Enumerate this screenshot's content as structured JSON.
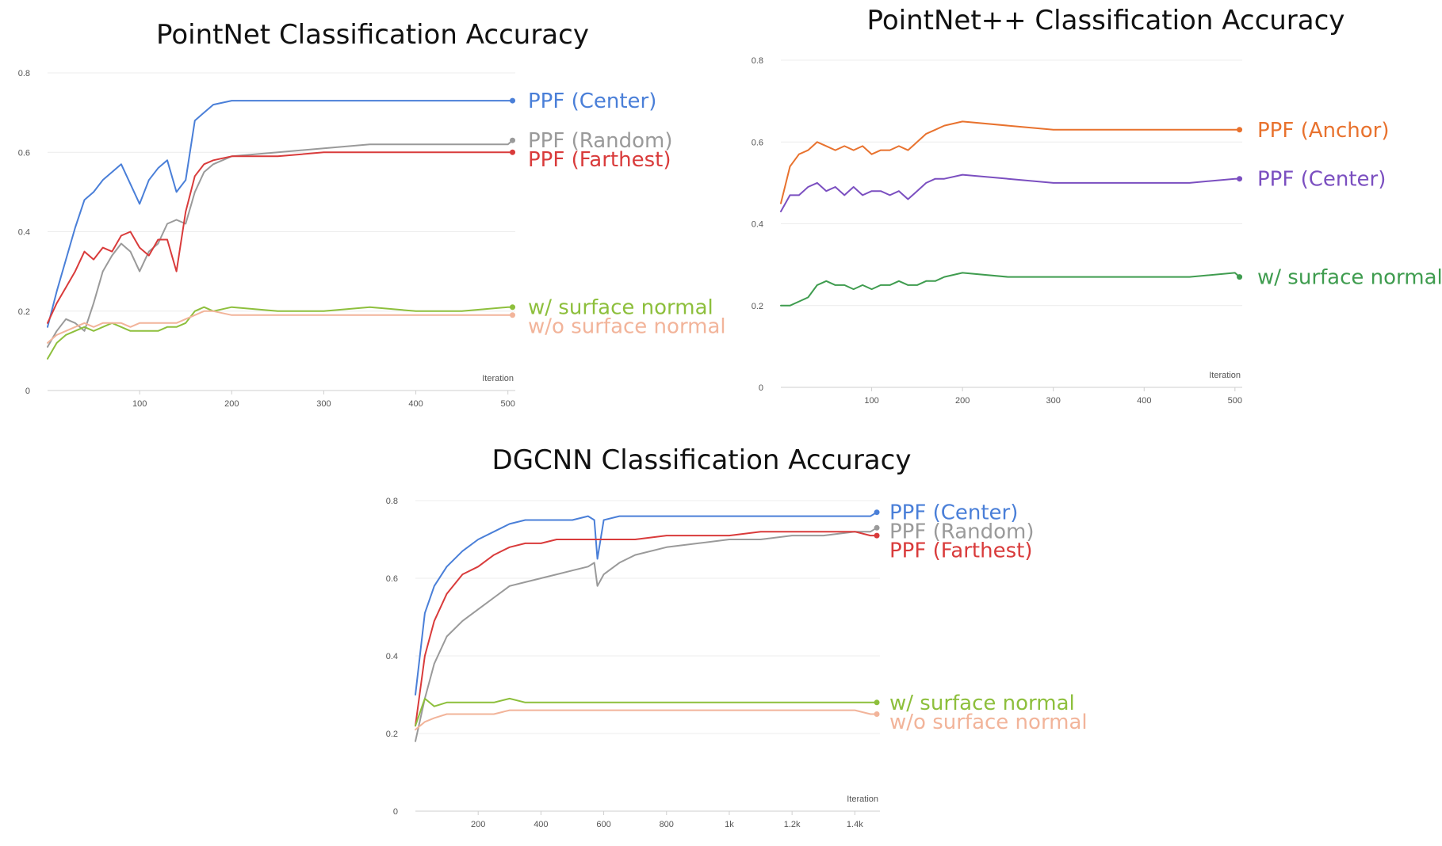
{
  "chart_data": [
    {
      "type": "line",
      "title": "PointNet Classification Accuracy",
      "xlabel": "Iteration",
      "ylabel": "",
      "xlim": [
        0,
        508
      ],
      "ylim": [
        0,
        0.8
      ],
      "xticks": [
        "100",
        "200",
        "300",
        "400",
        "500"
      ],
      "xtick_values": [
        100,
        200,
        300,
        400,
        500
      ],
      "yticks": [
        "0",
        "0.2",
        "0.4",
        "0.6",
        "0.8"
      ],
      "ytick_values": [
        0,
        0.2,
        0.4,
        0.6,
        0.8
      ],
      "grid": true,
      "series": [
        {
          "name": "PPF (Center)",
          "color": "#4a7fd8",
          "x": [
            0,
            10,
            20,
            30,
            40,
            50,
            60,
            70,
            80,
            90,
            100,
            110,
            120,
            130,
            140,
            150,
            160,
            170,
            180,
            200,
            250,
            300,
            350,
            400,
            450,
            500,
            505
          ],
          "y": [
            0.16,
            0.25,
            0.33,
            0.41,
            0.48,
            0.5,
            0.53,
            0.55,
            0.57,
            0.52,
            0.47,
            0.53,
            0.56,
            0.58,
            0.5,
            0.53,
            0.68,
            0.7,
            0.72,
            0.73,
            0.73,
            0.73,
            0.73,
            0.73,
            0.73,
            0.73,
            0.73
          ]
        },
        {
          "name": "PPF (Random)",
          "color": "#9a9a9a",
          "x": [
            0,
            10,
            20,
            30,
            40,
            50,
            60,
            70,
            80,
            90,
            100,
            110,
            120,
            130,
            140,
            150,
            160,
            170,
            180,
            200,
            250,
            300,
            350,
            400,
            450,
            500,
            505
          ],
          "y": [
            0.11,
            0.15,
            0.18,
            0.17,
            0.15,
            0.22,
            0.3,
            0.34,
            0.37,
            0.35,
            0.3,
            0.35,
            0.37,
            0.42,
            0.43,
            0.42,
            0.5,
            0.55,
            0.57,
            0.59,
            0.6,
            0.61,
            0.62,
            0.62,
            0.62,
            0.62,
            0.63
          ]
        },
        {
          "name": "PPF (Farthest)",
          "color": "#d93b3b",
          "x": [
            0,
            10,
            20,
            30,
            40,
            50,
            60,
            70,
            80,
            90,
            100,
            110,
            120,
            130,
            140,
            150,
            160,
            170,
            180,
            200,
            250,
            300,
            350,
            400,
            450,
            500,
            505
          ],
          "y": [
            0.17,
            0.22,
            0.26,
            0.3,
            0.35,
            0.33,
            0.36,
            0.35,
            0.39,
            0.4,
            0.36,
            0.34,
            0.38,
            0.38,
            0.3,
            0.45,
            0.54,
            0.57,
            0.58,
            0.59,
            0.59,
            0.6,
            0.6,
            0.6,
            0.6,
            0.6,
            0.6
          ]
        },
        {
          "name": "w/ surface normal",
          "color": "#8dbf3c",
          "x": [
            0,
            10,
            20,
            30,
            40,
            50,
            60,
            70,
            80,
            90,
            100,
            110,
            120,
            130,
            140,
            150,
            160,
            170,
            180,
            200,
            250,
            300,
            350,
            400,
            450,
            500,
            505
          ],
          "y": [
            0.08,
            0.12,
            0.14,
            0.15,
            0.16,
            0.15,
            0.16,
            0.17,
            0.16,
            0.15,
            0.15,
            0.15,
            0.15,
            0.16,
            0.16,
            0.17,
            0.2,
            0.21,
            0.2,
            0.21,
            0.2,
            0.2,
            0.21,
            0.2,
            0.2,
            0.21,
            0.21
          ]
        },
        {
          "name": "w/o surface normal",
          "color": "#f2b49a",
          "x": [
            0,
            10,
            20,
            30,
            40,
            50,
            60,
            70,
            80,
            90,
            100,
            110,
            120,
            130,
            140,
            150,
            160,
            170,
            180,
            200,
            250,
            300,
            350,
            400,
            450,
            500,
            505
          ],
          "y": [
            0.12,
            0.14,
            0.15,
            0.16,
            0.17,
            0.16,
            0.17,
            0.17,
            0.17,
            0.16,
            0.17,
            0.17,
            0.17,
            0.17,
            0.17,
            0.18,
            0.19,
            0.2,
            0.2,
            0.19,
            0.19,
            0.19,
            0.19,
            0.19,
            0.19,
            0.19,
            0.19
          ]
        }
      ]
    },
    {
      "type": "line",
      "title": "PointNet++ Classification Accuracy",
      "xlabel": "Iteration",
      "ylabel": "",
      "xlim": [
        0,
        508
      ],
      "ylim": [
        0,
        0.8
      ],
      "xticks": [
        "100",
        "200",
        "300",
        "400",
        "500"
      ],
      "xtick_values": [
        100,
        200,
        300,
        400,
        500
      ],
      "yticks": [
        "0",
        "0.2",
        "0.4",
        "0.6",
        "0.8"
      ],
      "ytick_values": [
        0,
        0.2,
        0.4,
        0.6,
        0.8
      ],
      "grid": true,
      "series": [
        {
          "name": "PPF (Anchor)",
          "color": "#e8722e",
          "x": [
            0,
            10,
            20,
            30,
            40,
            50,
            60,
            70,
            80,
            90,
            100,
            110,
            120,
            130,
            140,
            150,
            160,
            170,
            180,
            200,
            250,
            300,
            350,
            400,
            450,
            500,
            505
          ],
          "y": [
            0.45,
            0.54,
            0.57,
            0.58,
            0.6,
            0.59,
            0.58,
            0.59,
            0.58,
            0.59,
            0.57,
            0.58,
            0.58,
            0.59,
            0.58,
            0.6,
            0.62,
            0.63,
            0.64,
            0.65,
            0.64,
            0.63,
            0.63,
            0.63,
            0.63,
            0.63,
            0.63
          ]
        },
        {
          "name": "PPF (Center)",
          "color": "#7b4fc0",
          "x": [
            0,
            10,
            20,
            30,
            40,
            50,
            60,
            70,
            80,
            90,
            100,
            110,
            120,
            130,
            140,
            150,
            160,
            170,
            180,
            200,
            250,
            300,
            350,
            400,
            450,
            500,
            505
          ],
          "y": [
            0.43,
            0.47,
            0.47,
            0.49,
            0.5,
            0.48,
            0.49,
            0.47,
            0.49,
            0.47,
            0.48,
            0.48,
            0.47,
            0.48,
            0.46,
            0.48,
            0.5,
            0.51,
            0.51,
            0.52,
            0.51,
            0.5,
            0.5,
            0.5,
            0.5,
            0.51,
            0.51
          ]
        },
        {
          "name": "w/ surface normal",
          "color": "#3f9c4f",
          "x": [
            0,
            10,
            20,
            30,
            40,
            50,
            60,
            70,
            80,
            90,
            100,
            110,
            120,
            130,
            140,
            150,
            160,
            170,
            180,
            200,
            250,
            300,
            350,
            400,
            450,
            500,
            505
          ],
          "y": [
            0.2,
            0.2,
            0.21,
            0.22,
            0.25,
            0.26,
            0.25,
            0.25,
            0.24,
            0.25,
            0.24,
            0.25,
            0.25,
            0.26,
            0.25,
            0.25,
            0.26,
            0.26,
            0.27,
            0.28,
            0.27,
            0.27,
            0.27,
            0.27,
            0.27,
            0.28,
            0.27
          ]
        }
      ]
    },
    {
      "type": "line",
      "title": "DGCNN Classification Accuracy",
      "xlabel": "Iteration",
      "ylabel": "",
      "xlim": [
        0,
        1480
      ],
      "ylim": [
        0,
        0.8
      ],
      "xticks": [
        "200",
        "400",
        "600",
        "800",
        "1k",
        "1.2k",
        "1.4k"
      ],
      "xtick_values": [
        200,
        400,
        600,
        800,
        1000,
        1200,
        1400
      ],
      "yticks": [
        "0",
        "0.2",
        "0.4",
        "0.6",
        "0.8"
      ],
      "ytick_values": [
        0,
        0.2,
        0.4,
        0.6,
        0.8
      ],
      "grid": true,
      "series": [
        {
          "name": "PPF (Center)",
          "color": "#4a7fd8",
          "x": [
            0,
            30,
            60,
            100,
            150,
            200,
            250,
            300,
            350,
            400,
            450,
            500,
            550,
            570,
            580,
            600,
            650,
            700,
            800,
            900,
            1000,
            1100,
            1200,
            1300,
            1400,
            1450,
            1470
          ],
          "y": [
            0.3,
            0.51,
            0.58,
            0.63,
            0.67,
            0.7,
            0.72,
            0.74,
            0.75,
            0.75,
            0.75,
            0.75,
            0.76,
            0.75,
            0.65,
            0.75,
            0.76,
            0.76,
            0.76,
            0.76,
            0.76,
            0.76,
            0.76,
            0.76,
            0.76,
            0.76,
            0.77
          ]
        },
        {
          "name": "PPF (Random)",
          "color": "#9a9a9a",
          "x": [
            0,
            30,
            60,
            100,
            150,
            200,
            250,
            300,
            350,
            400,
            450,
            500,
            550,
            570,
            580,
            600,
            650,
            700,
            800,
            900,
            1000,
            1100,
            1200,
            1300,
            1400,
            1450,
            1470
          ],
          "y": [
            0.18,
            0.29,
            0.38,
            0.45,
            0.49,
            0.52,
            0.55,
            0.58,
            0.59,
            0.6,
            0.61,
            0.62,
            0.63,
            0.64,
            0.58,
            0.61,
            0.64,
            0.66,
            0.68,
            0.69,
            0.7,
            0.7,
            0.71,
            0.71,
            0.72,
            0.72,
            0.73
          ]
        },
        {
          "name": "PPF (Farthest)",
          "color": "#d93b3b",
          "x": [
            0,
            30,
            60,
            100,
            150,
            200,
            250,
            300,
            350,
            400,
            450,
            500,
            550,
            570,
            580,
            600,
            650,
            700,
            800,
            900,
            1000,
            1100,
            1200,
            1300,
            1400,
            1450,
            1470
          ],
          "y": [
            0.22,
            0.4,
            0.49,
            0.56,
            0.61,
            0.63,
            0.66,
            0.68,
            0.69,
            0.69,
            0.7,
            0.7,
            0.7,
            0.7,
            0.7,
            0.7,
            0.7,
            0.7,
            0.71,
            0.71,
            0.71,
            0.72,
            0.72,
            0.72,
            0.72,
            0.71,
            0.71
          ]
        },
        {
          "name": "w/ surface normal",
          "color": "#8dbf3c",
          "x": [
            0,
            30,
            60,
            100,
            150,
            200,
            250,
            300,
            350,
            400,
            450,
            500,
            550,
            570,
            580,
            600,
            650,
            700,
            800,
            900,
            1000,
            1100,
            1200,
            1300,
            1400,
            1450,
            1470
          ],
          "y": [
            0.22,
            0.29,
            0.27,
            0.28,
            0.28,
            0.28,
            0.28,
            0.29,
            0.28,
            0.28,
            0.28,
            0.28,
            0.28,
            0.28,
            0.28,
            0.28,
            0.28,
            0.28,
            0.28,
            0.28,
            0.28,
            0.28,
            0.28,
            0.28,
            0.28,
            0.28,
            0.28
          ]
        },
        {
          "name": "w/o surface normal",
          "color": "#f2b49a",
          "x": [
            0,
            30,
            60,
            100,
            150,
            200,
            250,
            300,
            350,
            400,
            450,
            500,
            550,
            570,
            580,
            600,
            650,
            700,
            800,
            900,
            1000,
            1100,
            1200,
            1300,
            1400,
            1450,
            1470
          ],
          "y": [
            0.21,
            0.23,
            0.24,
            0.25,
            0.25,
            0.25,
            0.25,
            0.26,
            0.26,
            0.26,
            0.26,
            0.26,
            0.26,
            0.26,
            0.26,
            0.26,
            0.26,
            0.26,
            0.26,
            0.26,
            0.26,
            0.26,
            0.26,
            0.26,
            0.26,
            0.25,
            0.25
          ]
        }
      ]
    }
  ]
}
